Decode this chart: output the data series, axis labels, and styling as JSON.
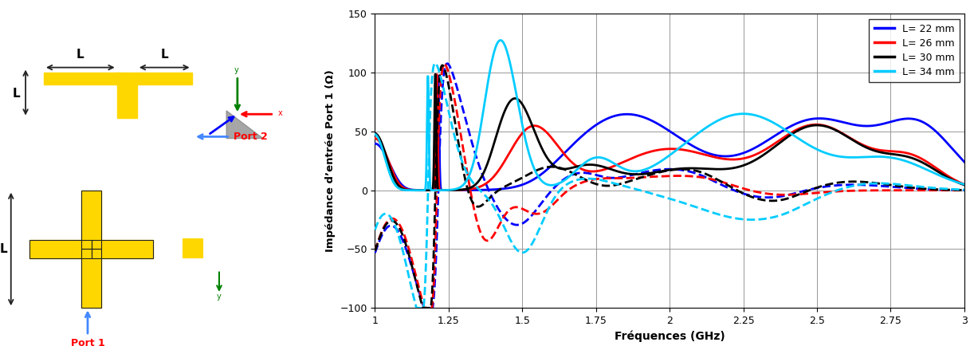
{
  "xlabel": "Fréquences (GHz)",
  "ylabel": "Impédance d’entrée Port 1 (Ω)",
  "xlim": [
    1,
    3
  ],
  "ylim": [
    -100,
    150
  ],
  "xticks": [
    1,
    1.25,
    1.5,
    1.75,
    2,
    2.25,
    2.5,
    2.75,
    3
  ],
  "yticks": [
    -100,
    -50,
    0,
    50,
    100,
    150
  ],
  "colors": {
    "L22": "#0000FF",
    "L26": "#FF0000",
    "L30": "#000000",
    "L34": "#00CCFF"
  },
  "legend": [
    {
      "label": "L= 22 mm",
      "color": "#0000FF"
    },
    {
      "label": "L= 26 mm",
      "color": "#FF0000"
    },
    {
      "label": "L= 30 mm",
      "color": "#000000"
    },
    {
      "label": "L= 34 mm",
      "color": "#00CCFF"
    }
  ],
  "linewidth": 2.0,
  "fig_width": 12.22,
  "fig_height": 4.34,
  "bg_color": "#FFFFFF"
}
